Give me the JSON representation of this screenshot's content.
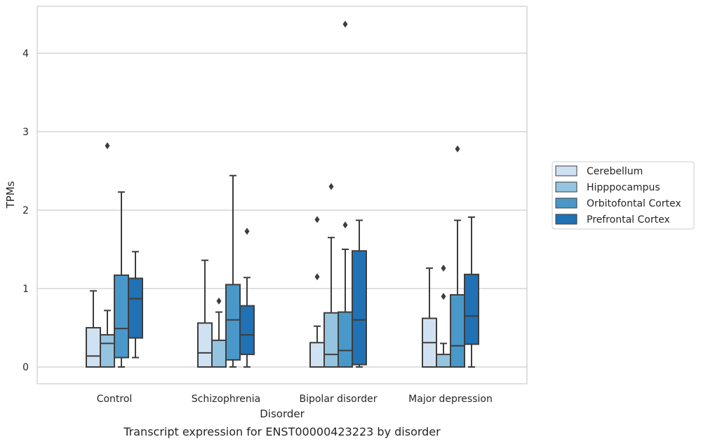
{
  "chart_data": {
    "type": "box",
    "caption": "Transcript expression for ENST00000423223 by disorder",
    "xlabel": "Disorder",
    "ylabel": "TPMs",
    "ylim": [
      -0.21,
      4.6
    ],
    "yticks": [
      0,
      1,
      2,
      3,
      4
    ],
    "grid": "horizontal",
    "legend_placement": "right",
    "categories": [
      "Control",
      "Schizophrenia",
      "Bipolar disorder",
      "Major depression"
    ],
    "series": [
      {
        "name": "Cerebellum",
        "color": "#d0e1f2",
        "boxes": [
          {
            "min": 0,
            "q1": 0,
            "median": 0.14,
            "q3": 0.5,
            "max": 0.97,
            "outliers": []
          },
          {
            "min": 0,
            "q1": 0,
            "median": 0.18,
            "q3": 0.56,
            "max": 1.36,
            "outliers": []
          },
          {
            "min": 0,
            "q1": 0,
            "median": 0.0,
            "q3": 0.31,
            "max": 0.52,
            "outliers": [
              1.15,
              1.88
            ]
          },
          {
            "min": 0,
            "q1": 0,
            "median": 0.31,
            "q3": 0.62,
            "max": 1.26,
            "outliers": []
          }
        ]
      },
      {
        "name": "Hipppocampus",
        "color": "#94c4df",
        "boxes": [
          {
            "min": 0,
            "q1": 0,
            "median": 0.3,
            "q3": 0.41,
            "max": 0.72,
            "outliers": [
              2.82
            ]
          },
          {
            "min": 0,
            "q1": 0,
            "median": 0.0,
            "q3": 0.34,
            "max": 0.7,
            "outliers": [
              0.84
            ]
          },
          {
            "min": 0,
            "q1": 0,
            "median": 0.16,
            "q3": 0.69,
            "max": 1.65,
            "outliers": [
              2.3
            ]
          },
          {
            "min": 0,
            "q1": 0,
            "median": 0.0,
            "q3": 0.16,
            "max": 0.3,
            "outliers": [
              0.9,
              1.26
            ]
          }
        ]
      },
      {
        "name": "Orbitofontal Cortex",
        "color": "#4a98c9",
        "boxes": [
          {
            "min": 0,
            "q1": 0.12,
            "median": 0.49,
            "q3": 1.17,
            "max": 2.23,
            "outliers": []
          },
          {
            "min": 0,
            "q1": 0.09,
            "median": 0.6,
            "q3": 1.05,
            "max": 2.44,
            "outliers": []
          },
          {
            "min": 0,
            "q1": 0,
            "median": 0.21,
            "q3": 0.7,
            "max": 1.5,
            "outliers": [
              1.81,
              4.37
            ]
          },
          {
            "min": 0,
            "q1": 0,
            "median": 0.27,
            "q3": 0.92,
            "max": 1.87,
            "outliers": [
              2.78
            ]
          }
        ]
      },
      {
        "name": "Prefrontal Cortex",
        "color": "#2171b5",
        "boxes": [
          {
            "min": 0.12,
            "q1": 0.37,
            "median": 0.87,
            "q3": 1.13,
            "max": 1.47,
            "outliers": []
          },
          {
            "min": 0,
            "q1": 0.16,
            "median": 0.41,
            "q3": 0.78,
            "max": 1.14,
            "outliers": [
              1.73
            ]
          },
          {
            "min": 0,
            "q1": 0.03,
            "median": 0.6,
            "q3": 1.48,
            "max": 1.87,
            "outliers": []
          },
          {
            "min": 0,
            "q1": 0.29,
            "median": 0.65,
            "q3": 1.18,
            "max": 1.91,
            "outliers": []
          }
        ]
      }
    ]
  }
}
